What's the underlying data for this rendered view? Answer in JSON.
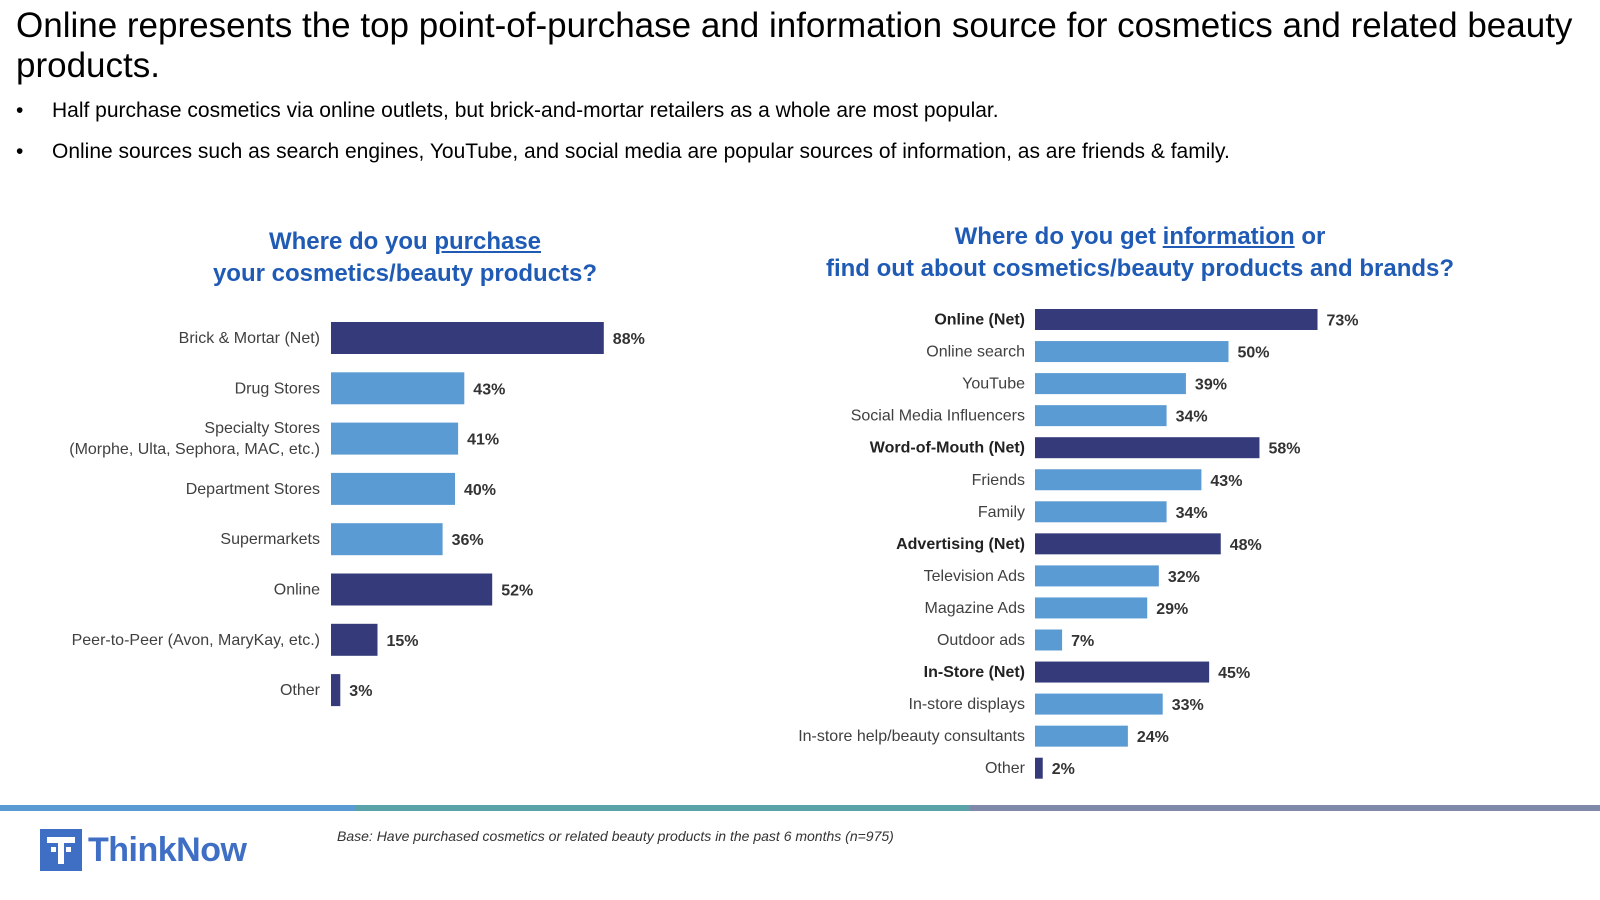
{
  "headline": "Online represents the top point-of-purchase and information source for cosmetics and related beauty products.",
  "bullets": [
    "Half purchase cosmetics via online outlets, but brick-and-mortar retailers as a whole are most popular.",
    "Online sources such as search engines, YouTube, and social media are popular sources of information, as are friends & family."
  ],
  "bullet_glyph": "•",
  "colors": {
    "dark": "#353b7a",
    "light": "#5b9bd3",
    "title": "#1f5bb5"
  },
  "chart_data": [
    {
      "type": "bar",
      "orientation": "horizontal",
      "title_parts": {
        "pre": "Where do you ",
        "underlined": "purchase",
        "line2": "your cosmetics/beauty products?"
      },
      "xlim": [
        0,
        100
      ],
      "unit": "%",
      "categories": [
        "Brick & Mortar (Net)",
        "Drug Stores",
        "Specialty Stores\n(Morphe, Ulta, Sephora, MAC, etc.)",
        "Department Stores",
        "Supermarkets",
        "Online",
        "Peer-to-Peer (Avon, MaryKay, etc.)",
        "Other"
      ],
      "values": [
        88,
        43,
        41,
        40,
        36,
        52,
        15,
        3
      ],
      "is_net": [
        true,
        false,
        false,
        false,
        false,
        true,
        true,
        true
      ],
      "bold_label": [
        false,
        false,
        false,
        false,
        false,
        false,
        false,
        false
      ]
    },
    {
      "type": "bar",
      "orientation": "horizontal",
      "title_parts": {
        "pre": "Where do you get ",
        "underlined": "information",
        "post": " or",
        "line2": "find out about cosmetics/beauty products and brands?"
      },
      "xlim": [
        0,
        100
      ],
      "unit": "%",
      "categories": [
        "Online (Net)",
        "Online search",
        "YouTube",
        "Social Media Influencers",
        "Word-of-Mouth (Net)",
        "Friends",
        "Family",
        "Advertising (Net)",
        "Television Ads",
        "Magazine Ads",
        "Outdoor ads",
        "In-Store (Net)",
        "In-store displays",
        "In-store help/beauty consultants",
        "Other"
      ],
      "values": [
        73,
        50,
        39,
        34,
        58,
        43,
        34,
        48,
        32,
        29,
        7,
        45,
        33,
        24,
        2
      ],
      "is_net": [
        true,
        false,
        false,
        false,
        true,
        false,
        false,
        true,
        false,
        false,
        false,
        true,
        false,
        false,
        true
      ],
      "bold_label": [
        true,
        false,
        false,
        false,
        true,
        false,
        false,
        true,
        false,
        false,
        false,
        true,
        false,
        false,
        false
      ]
    }
  ],
  "footer": {
    "logo_text": "ThinkNow",
    "base_note": "Base: Have purchased cosmetics or related beauty products in the past 6 months (n=975)"
  }
}
